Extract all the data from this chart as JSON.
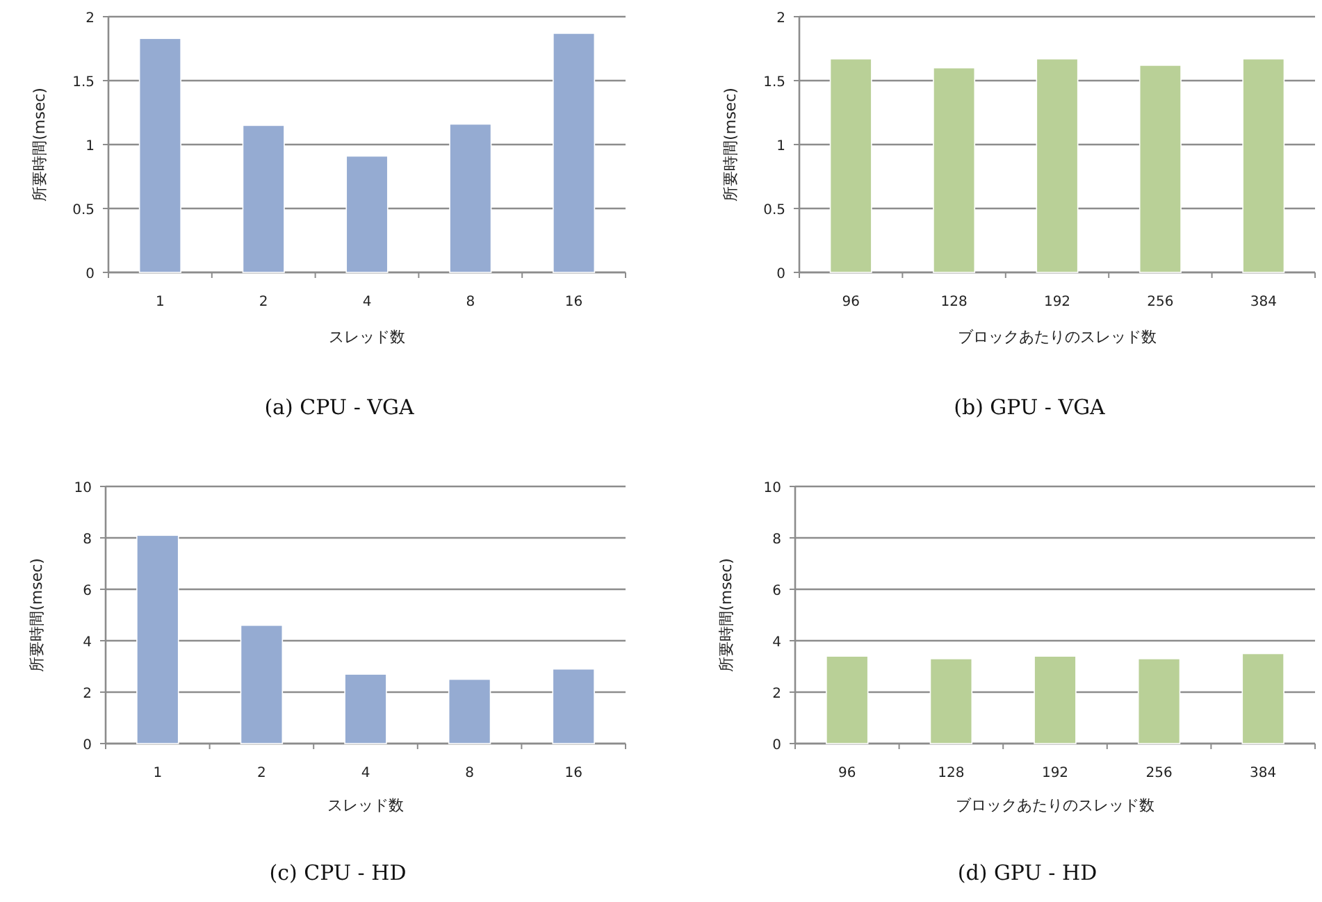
{
  "chart_data": [
    {
      "type": "bar",
      "title": "(a) CPU - VGA",
      "xlabel": "スレッド数",
      "ylabel": "所要時間(msec)",
      "categories": [
        "1",
        "2",
        "4",
        "8",
        "16"
      ],
      "values": [
        1.83,
        1.15,
        0.91,
        1.16,
        1.87
      ],
      "color": "#95abd2",
      "ylim": [
        0,
        2
      ],
      "yticks": [
        0,
        0.5,
        1,
        1.5,
        2
      ],
      "grid": "y"
    },
    {
      "type": "bar",
      "title": "(b) GPU - VGA",
      "xlabel": "ブロックあたりのスレッド数",
      "ylabel": "所要時間(msec)",
      "categories": [
        "96",
        "128",
        "192",
        "256",
        "384"
      ],
      "values": [
        1.67,
        1.6,
        1.67,
        1.62,
        1.67
      ],
      "color": "#b9d097",
      "ylim": [
        0,
        2
      ],
      "yticks": [
        0,
        0.5,
        1,
        1.5,
        2
      ],
      "grid": "y"
    },
    {
      "type": "bar",
      "title": "(c) CPU - HD",
      "xlabel": "スレッド数",
      "ylabel": "所要時間(msec)",
      "categories": [
        "1",
        "2",
        "4",
        "8",
        "16"
      ],
      "values": [
        8.1,
        4.6,
        2.7,
        2.5,
        2.9
      ],
      "color": "#95abd2",
      "ylim": [
        0,
        10
      ],
      "yticks": [
        0,
        2,
        4,
        6,
        8,
        10
      ],
      "grid": "y"
    },
    {
      "type": "bar",
      "title": "(d) GPU - HD",
      "xlabel": "ブロックあたりのスレッド数",
      "ylabel": "所要時間(msec)",
      "categories": [
        "96",
        "128",
        "192",
        "256",
        "384"
      ],
      "values": [
        3.4,
        3.3,
        3.4,
        3.3,
        3.5
      ],
      "color": "#b9d097",
      "ylim": [
        0,
        10
      ],
      "yticks": [
        0,
        2,
        4,
        6,
        8,
        10
      ],
      "grid": "y"
    }
  ]
}
